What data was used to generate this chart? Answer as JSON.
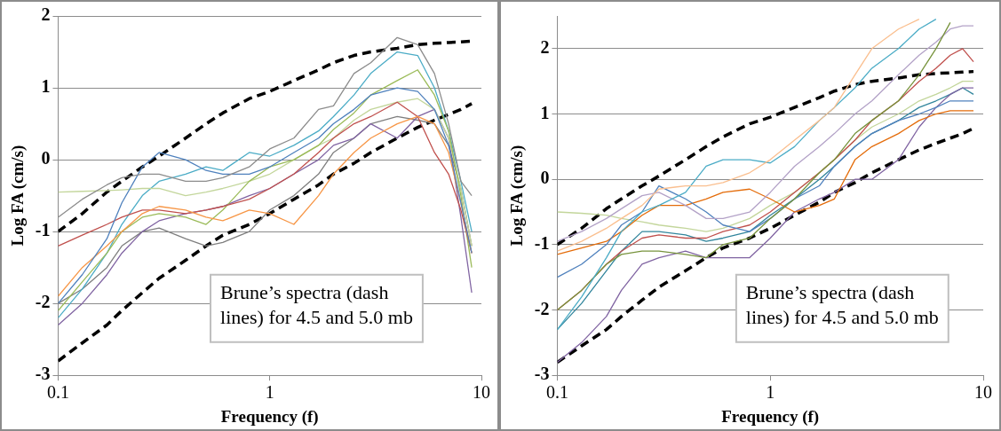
{
  "chart_data": [
    {
      "type": "line",
      "xlabel": "Frequency (f)",
      "ylabel": "Log FA (cm/s)",
      "log": "x",
      "grid": "y",
      "legend": false,
      "marker": "none",
      "xlim": [
        0.1,
        10
      ],
      "xticks": [
        0.1,
        1,
        10
      ],
      "ylim": [
        -3,
        2
      ],
      "yticks": [
        -3,
        -2,
        -1,
        0,
        1,
        2
      ],
      "x": [
        0.1,
        0.13,
        0.17,
        0.2,
        0.25,
        0.3,
        0.4,
        0.5,
        0.6,
        0.8,
        1,
        1.3,
        1.7,
        2,
        2.5,
        3,
        4,
        5,
        6,
        7,
        8,
        9
      ],
      "annotations": [
        "Brune’s spectra (dash lines) for 4.5 and 5.0 mb"
      ],
      "series": [
        {
          "color": "#8c8c8c",
          "values": [
            -0.8,
            -0.55,
            -0.35,
            -0.25,
            -0.2,
            -0.2,
            -0.3,
            -0.3,
            -0.25,
            -0.1,
            0.15,
            0.3,
            0.7,
            0.75,
            1.2,
            1.35,
            1.7,
            1.6,
            1.2,
            0.5,
            -0.3,
            -0.5
          ]
        },
        {
          "color": "#4f81bd",
          "values": [
            -2.0,
            -1.6,
            -1.1,
            -0.6,
            -0.1,
            0.1,
            0.0,
            -0.15,
            -0.2,
            -0.2,
            -0.1,
            0.1,
            0.3,
            0.5,
            0.7,
            0.9,
            1.0,
            0.95,
            0.7,
            0.2,
            -0.6,
            -1.3
          ]
        },
        {
          "color": "#f79646",
          "values": [
            -1.9,
            -1.5,
            -1.2,
            -1.0,
            -0.75,
            -0.65,
            -0.7,
            -0.8,
            -0.85,
            -0.7,
            -0.75,
            -0.9,
            -0.5,
            -0.2,
            0.1,
            0.3,
            0.5,
            0.6,
            0.5,
            0.1,
            -0.6,
            -1.3
          ]
        },
        {
          "color": "#c0504d",
          "values": [
            -1.2,
            -1.05,
            -0.9,
            -0.8,
            -0.7,
            -0.7,
            -0.75,
            -0.7,
            -0.65,
            -0.55,
            -0.4,
            -0.2,
            0.1,
            0.3,
            0.5,
            0.6,
            0.8,
            0.6,
            0.1,
            -0.2,
            -0.7,
            -1.3
          ]
        },
        {
          "color": "#9bbb59",
          "values": [
            -2.1,
            -1.7,
            -1.3,
            -1.0,
            -0.8,
            -0.75,
            -0.8,
            -0.9,
            -0.7,
            -0.3,
            -0.1,
            0.0,
            0.2,
            0.42,
            0.65,
            0.9,
            1.1,
            1.25,
            0.9,
            0.4,
            -0.5,
            -1.5
          ]
        },
        {
          "color": "#c3d69b",
          "values": [
            -0.45,
            -0.44,
            -0.43,
            -0.42,
            -0.4,
            -0.4,
            -0.5,
            -0.45,
            -0.4,
            -0.3,
            -0.2,
            0.0,
            0.2,
            0.3,
            0.55,
            0.7,
            0.8,
            0.85,
            0.7,
            0.3,
            -0.4,
            -1.2
          ]
        },
        {
          "color": "#8064a2",
          "values": [
            -2.3,
            -2.0,
            -1.6,
            -1.3,
            -1.0,
            -0.85,
            -0.75,
            -0.7,
            -0.65,
            -0.5,
            -0.4,
            -0.2,
            0.0,
            0.2,
            0.3,
            0.5,
            0.3,
            0.6,
            0.7,
            0.3,
            -0.8,
            -1.85
          ]
        },
        {
          "color": "#4bacc6",
          "values": [
            -2.2,
            -1.8,
            -1.3,
            -0.9,
            -0.5,
            -0.3,
            -0.2,
            -0.1,
            -0.15,
            0.1,
            0.05,
            0.2,
            0.4,
            0.6,
            0.9,
            1.2,
            1.5,
            1.45,
            1.0,
            0.4,
            -0.3,
            -1.0
          ]
        },
        {
          "color": "#7f7f7f",
          "values": [
            -2.0,
            -1.8,
            -1.5,
            -1.2,
            -1.0,
            -0.95,
            -1.1,
            -1.2,
            -1.15,
            -1.0,
            -0.7,
            -0.5,
            -0.2,
            0.1,
            0.3,
            0.5,
            0.6,
            0.55,
            0.5,
            0.2,
            -0.4,
            -1.2
          ]
        },
        {
          "color": "#000000",
          "line_style": "dashed",
          "values": [
            -1.0,
            -0.75,
            -0.45,
            -0.3,
            -0.1,
            0.05,
            0.3,
            0.5,
            0.65,
            0.85,
            0.95,
            1.1,
            1.25,
            1.35,
            1.45,
            1.5,
            1.55,
            1.6,
            1.62,
            1.63,
            1.64,
            1.65
          ]
        },
        {
          "color": "#000000",
          "line_style": "dashed",
          "values": [
            -2.8,
            -2.55,
            -2.3,
            -2.1,
            -1.85,
            -1.65,
            -1.4,
            -1.2,
            -1.05,
            -0.9,
            -0.75,
            -0.55,
            -0.35,
            -0.2,
            -0.05,
            0.1,
            0.3,
            0.45,
            0.55,
            0.63,
            0.7,
            0.78
          ]
        }
      ]
    },
    {
      "type": "line",
      "xlabel": "Frequency (f)",
      "ylabel": "Log FA (cm/s)",
      "log": "x",
      "grid": "y",
      "legend": false,
      "marker": "none",
      "xlim": [
        0.1,
        10
      ],
      "xticks": [
        0.1,
        1,
        10
      ],
      "ylim": [
        -3,
        2.5
      ],
      "yticks": [
        -3,
        -2,
        -1,
        0,
        1,
        2
      ],
      "x": [
        0.1,
        0.13,
        0.17,
        0.2,
        0.25,
        0.3,
        0.4,
        0.5,
        0.6,
        0.8,
        1,
        1.3,
        1.7,
        2,
        2.5,
        3,
        4,
        5,
        6,
        7,
        8,
        9
      ],
      "annotations": [
        "Brune’s spectra (dash lines) for 4.5 and 5.0 mb"
      ],
      "series": [
        {
          "color": "#fabf8f",
          "values": [
            -1.1,
            -0.95,
            -0.75,
            -0.6,
            -0.4,
            -0.15,
            -0.1,
            -0.1,
            -0.05,
            0.1,
            0.3,
            0.6,
            0.9,
            1.1,
            1.6,
            2.0,
            2.3,
            2.45,
            null,
            null,
            null,
            null
          ]
        },
        {
          "color": "#4bacc6",
          "values": [
            -2.3,
            -1.8,
            -1.2,
            -0.8,
            -0.5,
            -0.4,
            -0.2,
            0.2,
            0.3,
            0.3,
            0.25,
            0.5,
            0.9,
            1.1,
            1.4,
            1.7,
            2.0,
            2.3,
            2.45,
            null,
            null,
            null
          ]
        },
        {
          "color": "#77933c",
          "values": [
            -2.0,
            -1.7,
            -1.3,
            -1.15,
            -1.1,
            -1.1,
            -1.15,
            -1.2,
            -1.0,
            -0.9,
            -0.6,
            -0.3,
            0.1,
            0.3,
            0.7,
            0.9,
            1.2,
            1.6,
            2.0,
            2.4,
            null,
            null
          ]
        },
        {
          "color": "#b3a2c7",
          "values": [
            -0.95,
            -0.8,
            -0.6,
            -0.45,
            -0.25,
            -0.2,
            -0.4,
            -0.6,
            -0.6,
            -0.5,
            -0.2,
            0.2,
            0.5,
            0.7,
            1.0,
            1.2,
            1.6,
            1.9,
            2.1,
            2.3,
            2.35,
            2.35
          ]
        },
        {
          "color": "#4f81bd",
          "values": [
            -1.5,
            -1.3,
            -1.0,
            -0.7,
            -0.5,
            -0.1,
            -0.3,
            -0.5,
            -0.7,
            -0.8,
            -0.6,
            -0.3,
            -0.1,
            0.2,
            0.5,
            0.7,
            0.9,
            1.0,
            1.1,
            1.2,
            1.2,
            1.2
          ]
        },
        {
          "color": "#e46c0a",
          "values": [
            -1.15,
            -1.05,
            -0.95,
            -0.8,
            -0.55,
            -0.4,
            -0.4,
            -0.3,
            -0.2,
            -0.15,
            -0.3,
            -0.5,
            -0.4,
            -0.3,
            0.3,
            0.5,
            0.7,
            0.9,
            1.0,
            1.05,
            1.05,
            1.05
          ]
        },
        {
          "color": "#8064a2",
          "values": [
            -2.8,
            -2.5,
            -2.1,
            -1.7,
            -1.3,
            -1.2,
            -1.1,
            -1.2,
            -1.2,
            -1.2,
            -0.9,
            -0.5,
            -0.3,
            -0.2,
            0.0,
            0.0,
            0.3,
            0.8,
            1.1,
            1.3,
            1.4,
            1.4
          ]
        },
        {
          "color": "#c0504d",
          "values": [
            -2.0,
            -1.7,
            -1.3,
            -1.1,
            -0.9,
            -0.85,
            -0.9,
            -0.9,
            -0.8,
            -0.7,
            -0.5,
            -0.2,
            0.1,
            0.3,
            0.6,
            0.9,
            1.2,
            1.5,
            1.7,
            1.9,
            2.0,
            1.8
          ]
        },
        {
          "color": "#c3d69b",
          "values": [
            -0.5,
            -0.52,
            -0.55,
            -0.6,
            -0.65,
            -0.7,
            -0.75,
            -0.8,
            -0.75,
            -0.6,
            -0.4,
            -0.2,
            0.1,
            0.3,
            0.6,
            0.8,
            1.0,
            1.2,
            1.3,
            1.4,
            1.5,
            1.5
          ]
        },
        {
          "color": "#31859c",
          "values": [
            -2.3,
            -1.9,
            -1.4,
            -1.1,
            -0.8,
            -0.8,
            -0.85,
            -0.95,
            -0.9,
            -0.8,
            -0.55,
            -0.3,
            0.0,
            0.2,
            0.5,
            0.7,
            0.9,
            1.1,
            1.2,
            1.3,
            1.4,
            1.3
          ]
        },
        {
          "color": "#000000",
          "line_style": "dashed",
          "values": [
            -1.0,
            -0.75,
            -0.45,
            -0.3,
            -0.1,
            0.05,
            0.3,
            0.5,
            0.65,
            0.85,
            0.95,
            1.1,
            1.25,
            1.35,
            1.45,
            1.5,
            1.55,
            1.6,
            1.62,
            1.63,
            1.64,
            1.65
          ]
        },
        {
          "color": "#000000",
          "line_style": "dashed",
          "values": [
            -2.8,
            -2.55,
            -2.3,
            -2.1,
            -1.85,
            -1.65,
            -1.4,
            -1.2,
            -1.05,
            -0.9,
            -0.75,
            -0.55,
            -0.35,
            -0.2,
            -0.05,
            0.1,
            0.3,
            0.45,
            0.55,
            0.63,
            0.7,
            0.78
          ]
        }
      ]
    }
  ]
}
